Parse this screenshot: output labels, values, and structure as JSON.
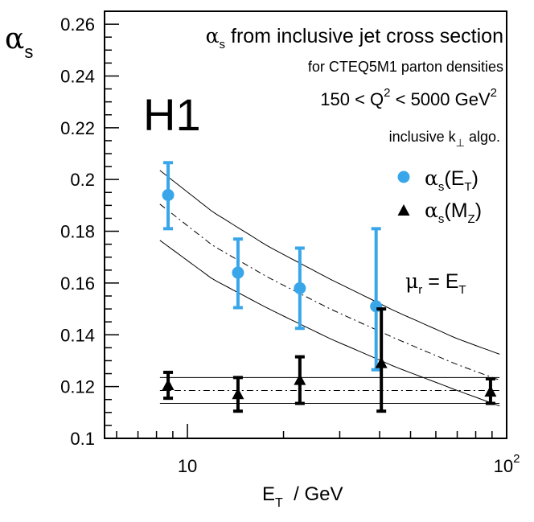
{
  "chart_data": {
    "type": "scatter",
    "experiment_label": "H1",
    "y_axis_label": {
      "main": "α",
      "sub": "s"
    },
    "x_axis_label": {
      "main": "E",
      "sub": "T",
      "rest": "  / GeV"
    },
    "annotations": {
      "line1": {
        "alpha": "α",
        "sub": "s",
        "rest": " from inclusive jet cross section"
      },
      "line2": "for CTEQ5M1 parton densities",
      "line3": {
        "pre": "150 < Q",
        "sup": "2",
        "mid": " < 5000 GeV",
        "sup2": "2"
      },
      "line4": {
        "pre": "inclusive k",
        "sub": "⊥",
        "post": " algo."
      },
      "scale": {
        "mu": "μ",
        "sub_r": "r",
        "eq": " = E",
        "sub_T": "T"
      }
    },
    "x_scale": "log",
    "xlim": [
      5.5,
      100
    ],
    "ylim": [
      0.1,
      0.265
    ],
    "x_ticks": [
      {
        "value": 10,
        "label": "10"
      },
      {
        "value": 100,
        "label": "10",
        "sup": "2"
      }
    ],
    "y_ticks": [
      {
        "value": 0.1,
        "label": "0.1"
      },
      {
        "value": 0.12,
        "label": "0.12"
      },
      {
        "value": 0.14,
        "label": "0.14"
      },
      {
        "value": 0.16,
        "label": "0.16"
      },
      {
        "value": 0.18,
        "label": "0.18"
      },
      {
        "value": 0.2,
        "label": "0.2"
      },
      {
        "value": 0.22,
        "label": "0.22"
      },
      {
        "value": 0.24,
        "label": "0.24"
      },
      {
        "value": 0.26,
        "label": "0.26"
      }
    ],
    "series": [
      {
        "name": {
          "main": "α",
          "sub": "s",
          "arg_open": "(E",
          "arg_sub": "T",
          "arg_close": ")"
        },
        "marker": "circle",
        "color": "#3aa6ea",
        "points": [
          {
            "x": 8.7,
            "y": 0.194,
            "ylo": 0.181,
            "yhi": 0.2065
          },
          {
            "x": 14.4,
            "y": 0.164,
            "ylo": 0.1505,
            "yhi": 0.177
          },
          {
            "x": 22.5,
            "y": 0.158,
            "ylo": 0.1425,
            "yhi": 0.1735
          },
          {
            "x": 39.0,
            "y": 0.151,
            "ylo": 0.1265,
            "yhi": 0.181
          }
        ]
      },
      {
        "name": {
          "main": "α",
          "sub": "s",
          "arg_open": "(M",
          "arg_sub": "Z",
          "arg_close": ")"
        },
        "marker": "triangle",
        "color": "#000000",
        "points": [
          {
            "x": 8.7,
            "y": 0.1205,
            "ylo": 0.1155,
            "yhi": 0.1255
          },
          {
            "x": 14.4,
            "y": 0.117,
            "ylo": 0.1105,
            "yhi": 0.1235
          },
          {
            "x": 22.5,
            "y": 0.1225,
            "ylo": 0.1135,
            "yhi": 0.1315
          },
          {
            "x": 40.5,
            "y": 0.129,
            "ylo": 0.1105,
            "yhi": 0.15
          },
          {
            "x": 89.0,
            "y": 0.118,
            "ylo": 0.1135,
            "yhi": 0.123
          }
        ]
      }
    ],
    "bands": {
      "x_range": [
        8.2,
        95
      ],
      "running": {
        "central": [
          [
            8.2,
            0.1905
          ],
          [
            12.0,
            0.1745
          ],
          [
            18.0,
            0.162
          ],
          [
            28.0,
            0.15
          ],
          [
            45.0,
            0.1385
          ],
          [
            70.0,
            0.1285
          ],
          [
            95.0,
            0.1225
          ]
        ],
        "upper": [
          [
            8.2,
            0.2035
          ],
          [
            12.0,
            0.1875
          ],
          [
            18.0,
            0.174
          ],
          [
            28.0,
            0.1615
          ],
          [
            45.0,
            0.149
          ],
          [
            70.0,
            0.1385
          ],
          [
            95.0,
            0.1325
          ]
        ],
        "lower": [
          [
            8.2,
            0.1765
          ],
          [
            12.0,
            0.1615
          ],
          [
            18.0,
            0.15
          ],
          [
            28.0,
            0.1385
          ],
          [
            45.0,
            0.1275
          ],
          [
            70.0,
            0.1185
          ],
          [
            95.0,
            0.1125
          ]
        ]
      },
      "constant": {
        "central": 0.1185,
        "upper": 0.1235,
        "lower": 0.1135
      }
    }
  }
}
